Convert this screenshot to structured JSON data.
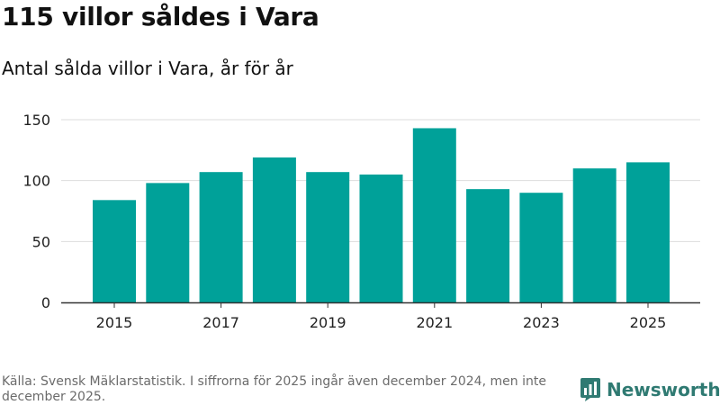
{
  "header": {
    "title": "115 villor såldes i Vara",
    "subtitle": "Antal sålda villor i Vara, år för år"
  },
  "chart_data": {
    "type": "bar",
    "title": "115 villor såldes i Vara",
    "subtitle": "Antal sålda villor i Vara, år för år",
    "xlabel": "",
    "ylabel": "",
    "categories": [
      "2015",
      "2016",
      "2017",
      "2018",
      "2019",
      "2020",
      "2021",
      "2022",
      "2023",
      "2024",
      "2025"
    ],
    "values": [
      84,
      98,
      107,
      119,
      107,
      105,
      143,
      93,
      90,
      110,
      115
    ],
    "x_tick_labels": [
      "2015",
      "2017",
      "2019",
      "2021",
      "2023",
      "2025"
    ],
    "y_ticks": [
      0,
      50,
      100,
      150
    ],
    "ylim": [
      0,
      150
    ],
    "grid": true,
    "legend": "none",
    "bar_color": "#00a199"
  },
  "footer": {
    "source": "Källa: Svensk Mäklarstatistik. I siffrorna för 2025 ingår även december 2024, men inte december 2025.",
    "brand": "Newsworthy",
    "brand_color": "#2f7a72",
    "brand_icon": "bar-chart-icon"
  }
}
